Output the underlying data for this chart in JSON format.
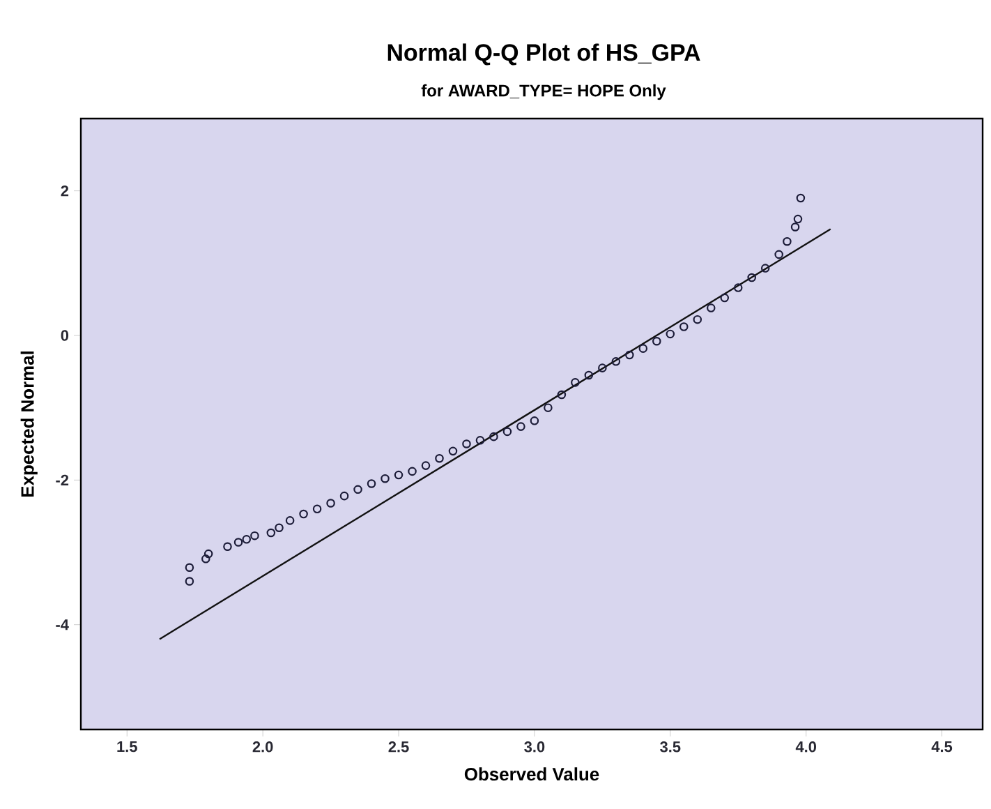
{
  "chart_data": {
    "type": "scatter",
    "title": "Normal Q-Q Plot of HS_GPA",
    "subtitle": "for AWARD_TYPE= HOPE Only",
    "xlabel": "Observed Value",
    "ylabel": "Expected Normal",
    "xlim": [
      1.33,
      4.65
    ],
    "ylim": [
      -5.45,
      3.0
    ],
    "xticks": [
      {
        "value": 1.5,
        "label": "1.5"
      },
      {
        "value": 2.0,
        "label": "2.0"
      },
      {
        "value": 2.5,
        "label": "2.5"
      },
      {
        "value": 3.0,
        "label": "3.0"
      },
      {
        "value": 3.5,
        "label": "3.5"
      },
      {
        "value": 4.0,
        "label": "4.0"
      },
      {
        "value": 4.5,
        "label": "4.5"
      }
    ],
    "yticks": [
      -4,
      -2,
      0,
      2
    ],
    "grid": false,
    "series": [
      {
        "marker": "circle",
        "color": "#1c1c38",
        "x": [
          1.73,
          1.73,
          1.79,
          1.8,
          1.87,
          1.91,
          1.94,
          1.97,
          2.03,
          2.06,
          2.1,
          2.15,
          2.2,
          2.25,
          2.3,
          2.35,
          2.4,
          2.45,
          2.5,
          2.55,
          2.6,
          2.65,
          2.7,
          2.75,
          2.8,
          2.85,
          2.9,
          2.95,
          3.0,
          3.05,
          3.1,
          3.15,
          3.2,
          3.25,
          3.3,
          3.35,
          3.4,
          3.45,
          3.5,
          3.55,
          3.6,
          3.65,
          3.7,
          3.75,
          3.8,
          3.85,
          3.9,
          3.93,
          3.96,
          3.97,
          3.98
        ],
        "values": [
          -3.4,
          -3.21,
          -3.09,
          -3.02,
          -2.92,
          -2.86,
          -2.82,
          -2.77,
          -2.73,
          -2.66,
          -2.56,
          -2.47,
          -2.4,
          -2.32,
          -2.22,
          -2.13,
          -2.05,
          -1.98,
          -1.93,
          -1.88,
          -1.8,
          -1.7,
          -1.6,
          -1.5,
          -1.45,
          -1.4,
          -1.33,
          -1.26,
          -1.18,
          -1.0,
          -0.82,
          -0.65,
          -0.55,
          -0.45,
          -0.36,
          -0.27,
          -0.18,
          -0.08,
          0.02,
          0.12,
          0.22,
          0.38,
          0.52,
          0.66,
          0.8,
          0.93,
          1.12,
          1.3,
          1.5,
          1.61,
          1.9
        ]
      },
      {
        "type": "line",
        "color": "#111111",
        "x": [
          1.62,
          4.09
        ],
        "values": [
          -4.2,
          1.47
        ]
      }
    ]
  }
}
